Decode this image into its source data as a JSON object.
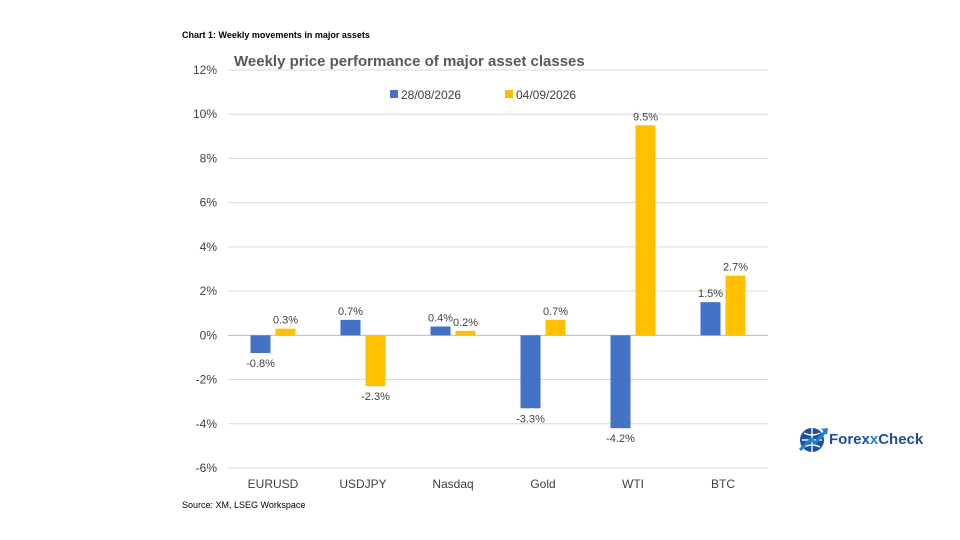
{
  "header": "Chart 1: Weekly movements in major assets",
  "source": "Source: XM, LSEG Workspace",
  "logo": {
    "prefix": "Forex",
    "mid": "x",
    "suffix": "Check",
    "icon": "globe-arrow-icon"
  },
  "chart_data": {
    "type": "bar",
    "title": "Weekly price performance of major asset classes",
    "xlabel": "",
    "ylabel": "",
    "categories": [
      "EURUSD",
      "USDJPY",
      "Nasdaq",
      "Gold",
      "WTI",
      "BTC"
    ],
    "series": [
      {
        "name": "28/08/2026",
        "color": "#4472c4",
        "values": [
          -0.8,
          0.7,
          0.4,
          -3.3,
          -4.2,
          1.5
        ]
      },
      {
        "name": "04/09/2026",
        "color": "#ffc000",
        "values": [
          0.3,
          -2.3,
          0.2,
          0.7,
          9.5,
          2.7
        ]
      }
    ],
    "ylim": [
      -6,
      12
    ],
    "yticks": [
      -6,
      -4,
      -2,
      0,
      2,
      4,
      6,
      8,
      10,
      12
    ],
    "value_format": "percent",
    "grid": true,
    "legend": "top"
  }
}
